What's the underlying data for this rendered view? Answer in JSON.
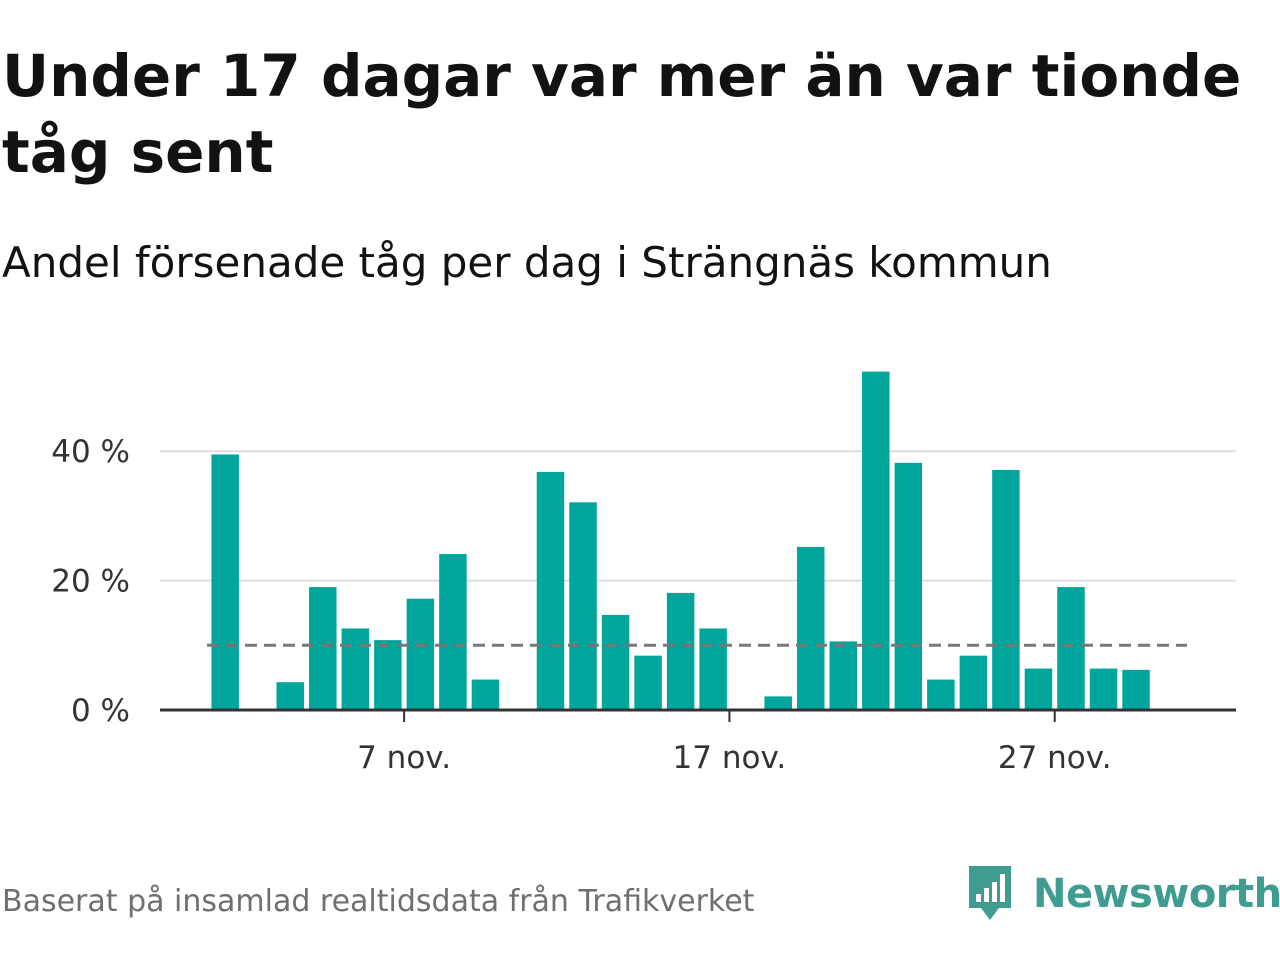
{
  "title": "Under 17 dagar var mer än var tionde tåg sent",
  "subtitle": "Andel försenade tåg per dag i Strängnäs kommun",
  "source": "Baserat på insamlad realtidsdata från Trafikverket",
  "brand": {
    "name": "Newsworthy",
    "color": "#3e9c91",
    "icon": "newsworthy-logo-icon"
  },
  "chart_data": {
    "type": "bar",
    "x": [
      1,
      2,
      3,
      4,
      5,
      6,
      7,
      8,
      9,
      10,
      11,
      12,
      13,
      14,
      15,
      16,
      17,
      18,
      19,
      20,
      21,
      22,
      23,
      24,
      25,
      26,
      27,
      28,
      29
    ],
    "values": [
      39.5,
      0,
      4.3,
      19,
      12.6,
      10.8,
      17.2,
      24.1,
      4.7,
      0,
      36.8,
      32.1,
      14.7,
      8.4,
      18.1,
      12.6,
      0,
      2.1,
      25.2,
      10.6,
      52.3,
      38.2,
      4.7,
      8.4,
      37.1,
      6.4,
      19,
      6.4,
      6.2
    ],
    "x_ticks": [
      {
        "value": 7,
        "label": "7 nov."
      },
      {
        "value": 17,
        "label": "17 nov."
      },
      {
        "value": 27,
        "label": "27 nov."
      }
    ],
    "y_ticks": [
      {
        "value": 0,
        "label": "0 %"
      },
      {
        "value": 20,
        "label": "20 %"
      },
      {
        "value": 40,
        "label": "40 %"
      }
    ],
    "ylim": [
      0,
      55
    ],
    "reference_line": {
      "value": 10,
      "style": "dashed",
      "color": "#777777"
    },
    "bar_color": "#00a69c",
    "grid": true
  }
}
